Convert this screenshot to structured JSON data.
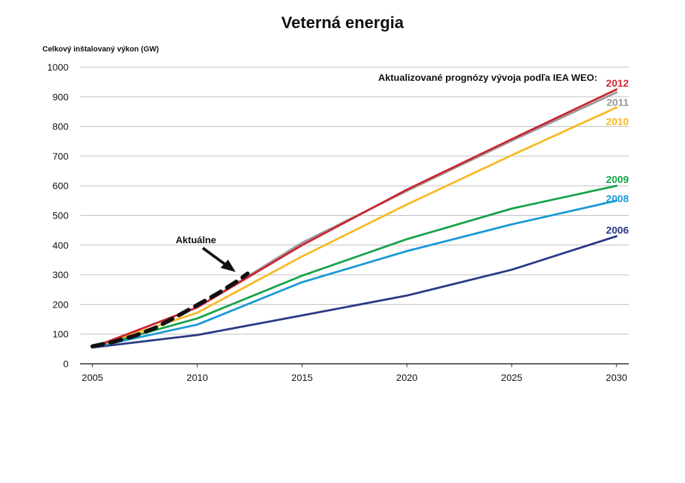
{
  "chart_data": {
    "type": "line",
    "title": "Veterná energia",
    "ylabel": "Celkový inštalovaný výkon (GW)",
    "xlabel": "",
    "xlim": [
      2005,
      2030
    ],
    "ylim": [
      0,
      1000
    ],
    "x_ticks": [
      "2005",
      "2010",
      "2015",
      "2020",
      "2025",
      "2030"
    ],
    "y_ticks": [
      "0",
      "100",
      "200",
      "300",
      "400",
      "500",
      "600",
      "700",
      "800",
      "900",
      "1000"
    ],
    "grid": "horizontal",
    "legend_title": "Aktualizované prognózy vývoja podľa IEA WEO:",
    "series": [
      {
        "name": "2006",
        "color": "#2b3a86",
        "points": [
          [
            2005,
            55
          ],
          [
            2010,
            97
          ],
          [
            2015,
            163
          ],
          [
            2020,
            230
          ],
          [
            2025,
            317
          ],
          [
            2030,
            430
          ]
        ]
      },
      {
        "name": "2008",
        "color": "#1a9ad6",
        "points": [
          [
            2005,
            55
          ],
          [
            2010,
            132
          ],
          [
            2015,
            275
          ],
          [
            2020,
            380
          ],
          [
            2025,
            470
          ],
          [
            2030,
            550
          ]
        ]
      },
      {
        "name": "2009",
        "color": "#18a34a",
        "points": [
          [
            2005,
            55
          ],
          [
            2010,
            153
          ],
          [
            2015,
            297
          ],
          [
            2020,
            420
          ],
          [
            2025,
            523
          ],
          [
            2030,
            600
          ]
        ]
      },
      {
        "name": "2010",
        "color": "#f7b926",
        "points": [
          [
            2005,
            55
          ],
          [
            2010,
            172
          ],
          [
            2015,
            362
          ],
          [
            2020,
            537
          ],
          [
            2025,
            703
          ],
          [
            2030,
            864
          ]
        ]
      },
      {
        "name": "2011",
        "color": "#999999",
        "points": [
          [
            2005,
            55
          ],
          [
            2010,
            190
          ],
          [
            2015,
            408
          ],
          [
            2020,
            583
          ],
          [
            2025,
            752
          ],
          [
            2030,
            915
          ]
        ]
      },
      {
        "name": "2012",
        "color": "#cc2531",
        "points": [
          [
            2005,
            55
          ],
          [
            2010,
            190
          ],
          [
            2015,
            400
          ],
          [
            2020,
            587
          ],
          [
            2025,
            757
          ],
          [
            2030,
            925
          ]
        ]
      }
    ],
    "actual": {
      "label": "Aktuálne",
      "color": "#111111",
      "points": [
        [
          2005,
          59
        ],
        [
          2006,
          74
        ],
        [
          2007,
          94
        ],
        [
          2008,
          121
        ],
        [
          2009,
          159
        ],
        [
          2010,
          198
        ],
        [
          2011,
          238
        ],
        [
          2012,
          283
        ],
        [
          2012.4,
          304
        ]
      ]
    }
  }
}
